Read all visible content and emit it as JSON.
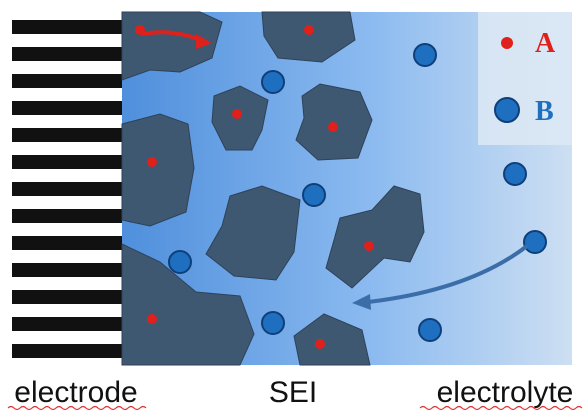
{
  "legend": {
    "a": "A",
    "b": "B"
  },
  "labels": {
    "electrode": "electrode",
    "sei": "SEI",
    "electrolyte": "electrolyte"
  }
}
